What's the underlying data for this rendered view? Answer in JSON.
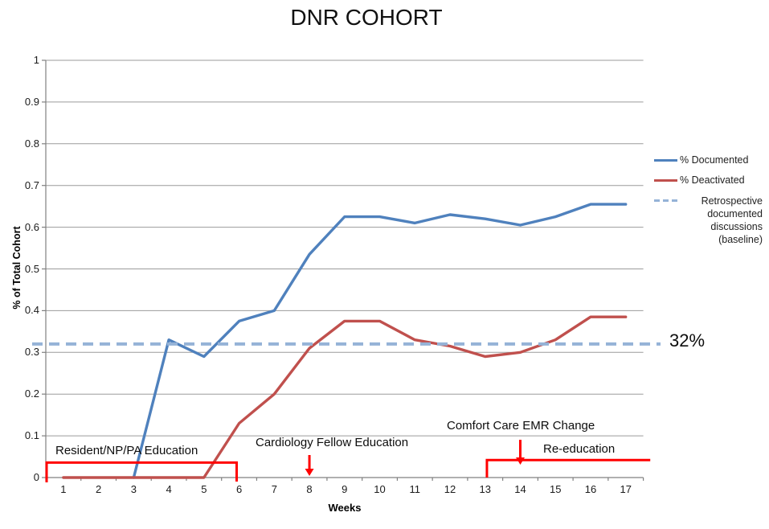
{
  "chart": {
    "title": "DNR COHORT",
    "y_axis": {
      "title": "% of Total Cohort",
      "tick_labels": [
        "0",
        "0.1",
        "0.2",
        "0.3",
        "0.4",
        "0.5",
        "0.6",
        "0.7",
        "0.8",
        "0.9",
        "1"
      ]
    },
    "x_axis": {
      "title": "Weeks",
      "tick_labels": [
        "1",
        "2",
        "3",
        "4",
        "5",
        "6",
        "7",
        "8",
        "9",
        "10",
        "11",
        "12",
        "13",
        "14",
        "15",
        "16",
        "17"
      ]
    }
  },
  "chart_data": {
    "type": "line",
    "title": "DNR COHORT",
    "xlabel": "Weeks",
    "ylabel": "% of Total Cohort",
    "x": [
      1,
      2,
      3,
      4,
      5,
      6,
      7,
      8,
      9,
      10,
      11,
      12,
      13,
      14,
      15,
      16,
      17
    ],
    "ylim": [
      0,
      1
    ],
    "y_tick_interval": 0.1,
    "grid": true,
    "legend_position": "right",
    "series": [
      {
        "name": "% Documented",
        "color": "#4F81BD",
        "values": [
          null,
          null,
          0,
          0.33,
          0.29,
          0.375,
          0.4,
          0.535,
          0.625,
          0.625,
          0.61,
          0.63,
          0.62,
          0.605,
          0.625,
          0.655,
          0.655
        ]
      },
      {
        "name": "% Deactivated",
        "color": "#C0504D",
        "values": [
          0,
          0,
          0,
          0,
          0,
          0.13,
          0.2,
          0.31,
          0.375,
          0.375,
          0.33,
          0.315,
          0.29,
          0.3,
          0.33,
          0.385,
          0.385
        ]
      }
    ],
    "baseline": {
      "name": "Retrospective documented discussions (baseline)",
      "value": 0.32,
      "label": "32%",
      "color": "#95B3D7",
      "style": "dashed"
    }
  },
  "annotations": {
    "color": "#FF0000",
    "resident": {
      "label": "Resident/NP/PA Education",
      "type": "bracket",
      "week_start": 0.5,
      "week_end": 5.93,
      "bar_value": 0.036
    },
    "cardiology": {
      "label": "Cardiology Fellow Education",
      "type": "arrow-down",
      "week": 8
    },
    "comfort": {
      "label": "Comfort Care EMR Change",
      "type": "arrow-down",
      "week": 14
    },
    "reeducation": {
      "label": "Re-education",
      "type": "bracket",
      "week_start": 13.05,
      "week_end": 17.38,
      "bar_value": 0.042
    }
  }
}
